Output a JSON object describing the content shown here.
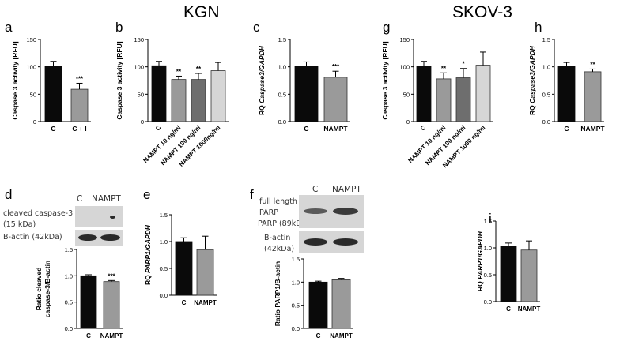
{
  "headers": {
    "left": "KGN",
    "right": "SKOV-3"
  },
  "panel_letters": [
    "a",
    "b",
    "c",
    "g",
    "h",
    "d",
    "e",
    "f",
    "i"
  ],
  "colors": {
    "black": "#0a0a0a",
    "grey": "#9a9a9a",
    "dark_grey": "#6e6e6e",
    "light_grey": "#d6d6d6"
  },
  "blot_d": {
    "col_c": "C",
    "col_nampt": "NAMPT",
    "row1": "cleaved caspase-3",
    "row2": "(15 kDa)",
    "row3": "B-actin (42kDa)"
  },
  "blot_f": {
    "col_c": "C",
    "col_nampt": "NAMPT",
    "row1": "full length",
    "row2": "PARP",
    "row3": "PARP (89kDa)",
    "row4": "B-actin",
    "row5": "(42kDa)"
  },
  "chart_data": [
    {
      "panel": "a",
      "type": "bar",
      "ylabel": "Caspase 3 activity [RFU]",
      "ylim": [
        0,
        150
      ],
      "ticks": [
        0,
        50,
        100,
        150
      ],
      "categories": [
        "C",
        "C + I"
      ],
      "values": [
        101,
        59
      ],
      "errors": [
        9,
        11
      ],
      "colors": [
        "#0a0a0a",
        "#9a9a9a"
      ],
      "sig": [
        "",
        "***"
      ]
    },
    {
      "panel": "b",
      "type": "bar",
      "ylabel": "Caspase 3 activity [RFU]",
      "ylim": [
        0,
        150
      ],
      "ticks": [
        0,
        50,
        100,
        150
      ],
      "categories": [
        "C",
        "NAMPT 10 ng/ml",
        "NAMPT 100 ng/ml",
        "NAMPT 1000ng/ml"
      ],
      "values": [
        102,
        77,
        77,
        93
      ],
      "errors": [
        8,
        6,
        11,
        15
      ],
      "colors": [
        "#0a0a0a",
        "#9a9a9a",
        "#6e6e6e",
        "#d6d6d6"
      ],
      "sig": [
        "",
        "**",
        "**",
        ""
      ]
    },
    {
      "panel": "c",
      "type": "bar",
      "ylabel_plain": "RQ ",
      "ylabel_italic": "Caspase3/GAPDH",
      "ylim": [
        0,
        1.5
      ],
      "ticks": [
        "0.0",
        "0.5",
        "1.0",
        "1.5"
      ],
      "categories": [
        "C",
        "NAMPT"
      ],
      "values": [
        1.01,
        0.81
      ],
      "errors": [
        0.08,
        0.11
      ],
      "colors": [
        "#0a0a0a",
        "#9a9a9a"
      ],
      "sig": [
        "",
        "***"
      ]
    },
    {
      "panel": "g",
      "type": "bar",
      "ylabel": "Caspase 3 activity [RFU]",
      "ylim": [
        0,
        150
      ],
      "ticks": [
        0,
        50,
        100,
        150
      ],
      "categories": [
        "C",
        "NAMPT 10 ng/ml",
        "NAMPT 100 ng/ml",
        "NAMPT 1000 ng/ml"
      ],
      "values": [
        101,
        78,
        80,
        103
      ],
      "errors": [
        9,
        11,
        17,
        24
      ],
      "colors": [
        "#0a0a0a",
        "#9a9a9a",
        "#6e6e6e",
        "#d6d6d6"
      ],
      "sig": [
        "",
        "**",
        "*",
        ""
      ]
    },
    {
      "panel": "h",
      "type": "bar",
      "ylabel_plain": "RQ ",
      "ylabel_italic": "Caspase3/GAPDH",
      "ylim": [
        0,
        1.5
      ],
      "ticks": [
        "0.0",
        "0.5",
        "1.0",
        "1.5"
      ],
      "categories": [
        "C",
        "NAMPT"
      ],
      "values": [
        1.01,
        0.91
      ],
      "errors": [
        0.07,
        0.05
      ],
      "colors": [
        "#0a0a0a",
        "#9a9a9a"
      ],
      "sig": [
        "",
        "**"
      ]
    },
    {
      "panel": "d",
      "type": "bar",
      "ylabel": "Ratio cleaved caspase-3/B-actin",
      "ylim": [
        0,
        1.5
      ],
      "ticks": [
        "0.0",
        "0.5",
        "1.0",
        "1.5"
      ],
      "categories": [
        "C",
        "NAMPT"
      ],
      "values": [
        1.0,
        0.89
      ],
      "errors": [
        0.02,
        0.02
      ],
      "colors": [
        "#0a0a0a",
        "#9a9a9a"
      ],
      "sig": [
        "",
        "***"
      ]
    },
    {
      "panel": "e",
      "type": "bar",
      "ylabel_plain": "RQ ",
      "ylabel_italic": "PARP1/GAPDH",
      "ylim": [
        0,
        1.5
      ],
      "ticks": [
        "0.0",
        "0.5",
        "1.0",
        "1.5"
      ],
      "categories": [
        "C",
        "NAMPT"
      ],
      "values": [
        1.0,
        0.85
      ],
      "errors": [
        0.07,
        0.25
      ],
      "colors": [
        "#0a0a0a",
        "#9a9a9a"
      ],
      "sig": [
        "",
        ""
      ]
    },
    {
      "panel": "f",
      "type": "bar",
      "ylabel": "Ratio PARP1/B-actin",
      "ylim": [
        0,
        1.5
      ],
      "ticks": [
        "0.0",
        "0.5",
        "1.0",
        "1.5"
      ],
      "categories": [
        "C",
        "NAMPT"
      ],
      "values": [
        1.0,
        1.05
      ],
      "errors": [
        0.02,
        0.03
      ],
      "colors": [
        "#0a0a0a",
        "#9a9a9a"
      ],
      "sig": [
        "",
        ""
      ]
    },
    {
      "panel": "i",
      "type": "bar",
      "ylabel_plain": "RQ ",
      "ylabel_italic": "PARP1/GAPDH",
      "ylim": [
        0,
        1.5
      ],
      "ticks": [
        "0.0",
        "0.5",
        "1.0",
        "1.5"
      ],
      "categories": [
        "C",
        "NAMPT"
      ],
      "values": [
        1.03,
        0.96
      ],
      "errors": [
        0.06,
        0.17
      ],
      "colors": [
        "#0a0a0a",
        "#9a9a9a"
      ],
      "sig": [
        "",
        ""
      ]
    }
  ]
}
